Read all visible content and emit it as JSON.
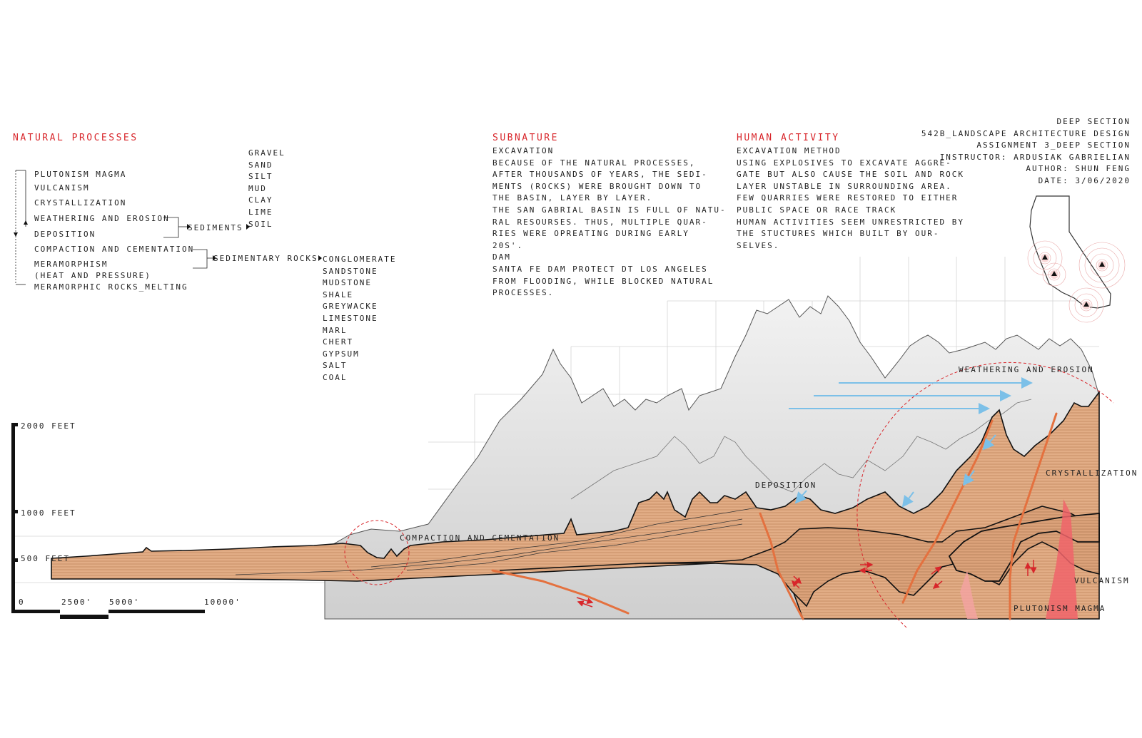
{
  "natural_processes": {
    "title": "NATURAL PROCESSES",
    "steps": [
      "PLUTONISM MAGMA",
      "VULCANISM",
      "CRYSTALLIZATION",
      "WEATHERING AND EROSION",
      "DEPOSITION",
      "COMPACTION AND CEMENTATION",
      "MERAMORPHISM",
      "(HEAT AND PRESSURE)",
      "MERAMORPHIC ROCKS_MELTING"
    ],
    "sediments_label": "SEDIMENTS",
    "sediments": [
      "GRAVEL",
      "SAND",
      "SILT",
      "MUD",
      "CLAY",
      "LIME",
      "SOIL"
    ],
    "sedimentary_label": "SEDIMENTARY ROCKS",
    "sedimentary_rocks": [
      "CONGLOMERATE",
      "SANDSTONE",
      "MUDSTONE",
      "SHALE",
      "GREYWACKE",
      "LIMESTONE",
      "MARL",
      "CHERT",
      "GYPSUM",
      "SALT",
      "COAL"
    ]
  },
  "subnature": {
    "title": "SUBNATURE",
    "lines": [
      "EXCAVATION",
      "BECAUSE OF THE NATURAL PROCESSES,",
      "AFTER THOUSANDS OF YEARS, THE SEDI-",
      "MENTS (ROCKS) WERE BROUGHT DOWN TO",
      "THE BASIN, LAYER BY LAYER.",
      "THE SAN GABRIAL BASIN IS FULL OF NATU-",
      "RAL RESOURSES. THUS, MULTIPLE QUAR-",
      "RIES WERE OPREATING DURING EARLY",
      "20S'.",
      "DAM",
      "SANTA FE DAM PROTECT DT LOS ANGELES",
      "FROM FLOODING, WHILE BLOCKED NATURAL",
      "PROCESSES."
    ]
  },
  "human_activity": {
    "title": "HUMAN ACTIVITY",
    "lines": [
      "EXCAVATION METHOD",
      "USING EXPLOSIVES TO EXCAVATE AGGRE-",
      "GATE BUT ALSO CAUSE THE SOIL AND ROCK",
      "LAYER UNSTABLE IN SURROUNDING AREA.",
      "FEW QUARRIES WERE RESTORED TO EITHER",
      "PUBLIC SPACE OR RACE TRACK",
      "HUMAN ACTIVITIES SEEM UNRESTRICTED BY",
      "THE STUCTURES WHICH BUILT BY OUR-",
      "SELVES."
    ]
  },
  "title_block": {
    "lines": [
      "DEEP SECTION",
      "542B_LANDSCAPE ARCHITECTURE DESIGN",
      "ASSIGNMENT 3_DEEP SECTION",
      "INSTRUCTOR: ARDUSIAK GABRIELIAN",
      "AUTHOR: SHUN FENG",
      "DATE: 3/06/2020"
    ]
  },
  "elevation_scale": {
    "labels": [
      "2000 FEET",
      "1000 FEET",
      "500 FEET"
    ]
  },
  "distance_scale": {
    "labels": [
      "0",
      "2500'",
      "5000'",
      "10000'"
    ]
  },
  "section_labels": {
    "compaction": "COMPACTION AND CEMENTATION",
    "deposition": "DEPOSITION",
    "weathering": "WEATHERING AND EROSION",
    "crystallization": "CRYSTALLIZATION",
    "vulcanism": "VULCANISM",
    "plutonism": "PLUTONISM MAGMA"
  },
  "colors": {
    "accent_red": "#d8262b",
    "sediment_orange": "#d99a6c",
    "fault_orange": "#e4713f",
    "magma_red": "#f0646a",
    "water_blue": "#7cc0e8",
    "mountain_grey": "#d9d9d9"
  }
}
